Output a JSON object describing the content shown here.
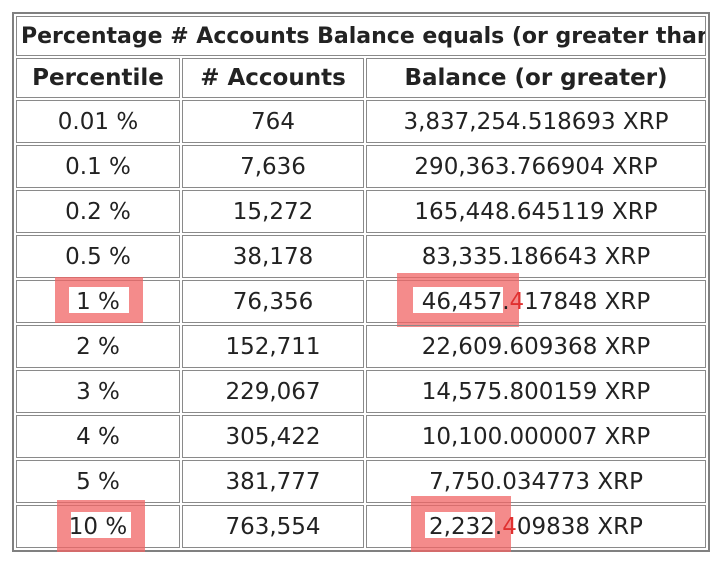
{
  "table": {
    "title": "Percentage # Accounts Balance equals (or greater than)",
    "headers": [
      "Percentile",
      "# Accounts",
      "Balance (or greater)"
    ],
    "rows": [
      {
        "percentile": "0.01 %",
        "accounts": "764",
        "balance": "3,837,254.518693 XRP"
      },
      {
        "percentile": "0.1 %",
        "accounts": "7,636",
        "balance": "290,363.766904 XRP"
      },
      {
        "percentile": "0.2 %",
        "accounts": "15,272",
        "balance": "165,448.645119 XRP"
      },
      {
        "percentile": "0.5 %",
        "accounts": "38,178",
        "balance": "83,335.186643 XRP"
      },
      {
        "percentile": "1 %",
        "accounts": "76,356",
        "balance_part1": "46,457.",
        "balance_part2": "4",
        "balance_part3": "17848 XRP"
      },
      {
        "percentile": "2 %",
        "accounts": "152,711",
        "balance": "22,609.609368 XRP"
      },
      {
        "percentile": "3 %",
        "accounts": "229,067",
        "balance": "14,575.800159 XRP"
      },
      {
        "percentile": "4 %",
        "accounts": "305,422",
        "balance": "10,100.000007 XRP"
      },
      {
        "percentile": "5 %",
        "accounts": "381,777",
        "balance": "7,750.034773 XRP"
      },
      {
        "percentile": "10 %",
        "accounts": "763,554",
        "balance_part1": "2,232.",
        "balance_part2": "4",
        "balance_part3": "09838 XRP"
      }
    ]
  },
  "colors": {
    "highlight": "#f06464",
    "highlight_digit": "#e03030",
    "border": "#8a8a8a"
  }
}
